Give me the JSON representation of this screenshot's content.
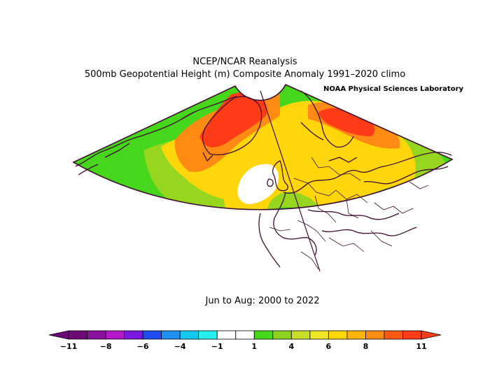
{
  "header": {
    "title_line1": "NCEP/NCAR Reanalysis",
    "title_line2": "500mb Geopotential Height (m) Composite Anomaly 1991–2020 climo",
    "credit": "NOAA Physical Sciences Laboratory"
  },
  "map": {
    "period": "Jun to Aug: 2000 to 2022",
    "colors": {
      "coast": "#3d1030",
      "deep_orange": "#ff3c18",
      "orange": "#ff8a14",
      "yellow": "#ffd60a",
      "light_green": "#96d61e",
      "green": "#46d61c",
      "white": "#ffffff"
    }
  },
  "colorbar": {
    "tick_labels": [
      "−11",
      "−8",
      "−6",
      "−4",
      "−1",
      "1",
      "4",
      "6",
      "8",
      "11"
    ],
    "colors": [
      "#6e0a78",
      "#8c10a0",
      "#b418c8",
      "#7a18e0",
      "#1e4cf0",
      "#1e90f0",
      "#14c8f0",
      "#28f0f0",
      "#ffffff",
      "#ffffff",
      "#46d61c",
      "#8cd21e",
      "#c8dc28",
      "#f0e628",
      "#ffd60a",
      "#ffb40a",
      "#ff8c14",
      "#ff5a14",
      "#ff3c18"
    ]
  }
}
